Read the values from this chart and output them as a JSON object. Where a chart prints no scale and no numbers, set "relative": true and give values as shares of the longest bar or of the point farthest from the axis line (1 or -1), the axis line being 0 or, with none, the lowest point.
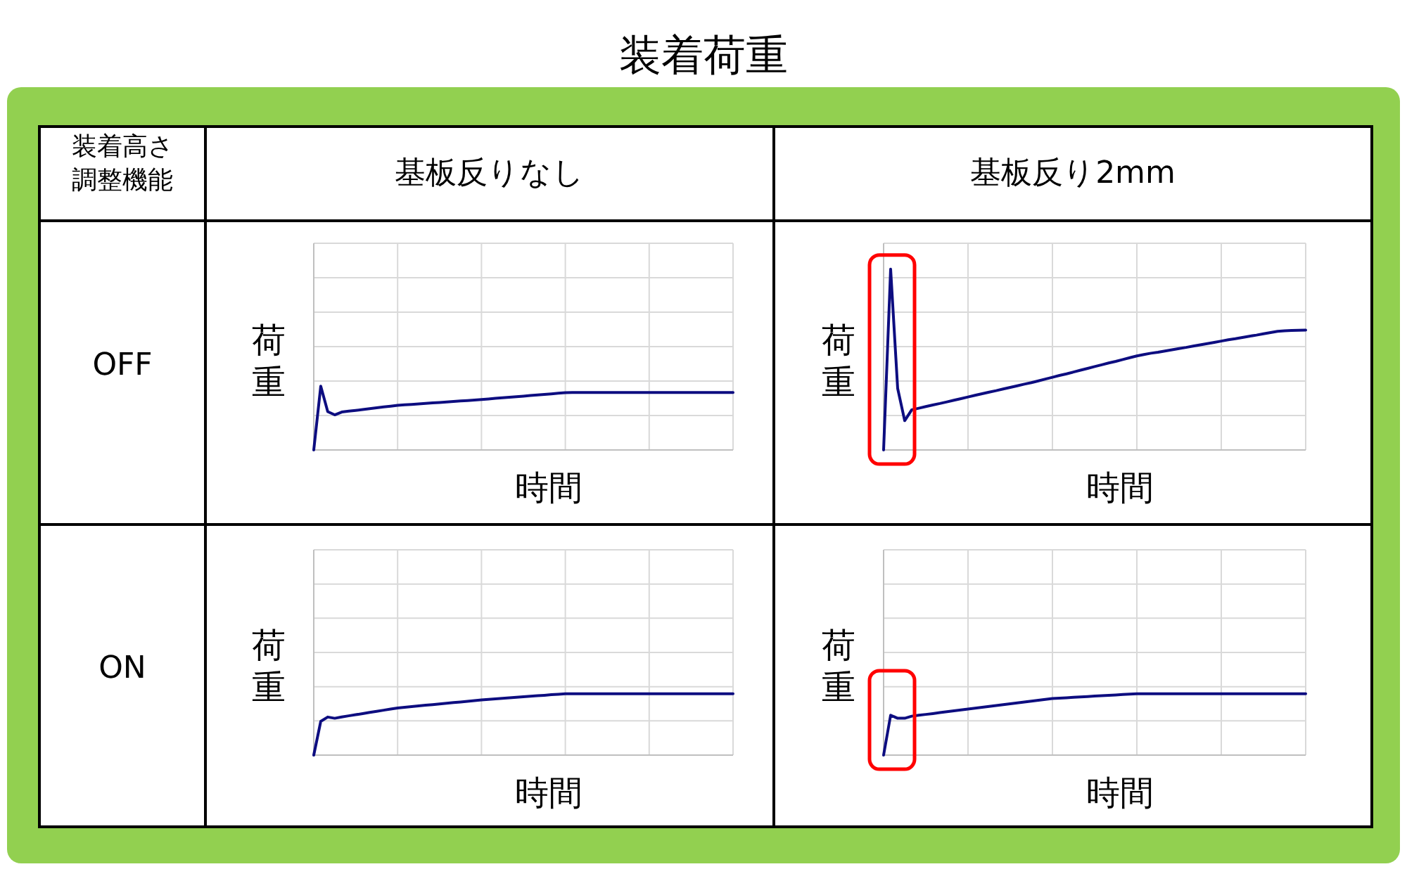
{
  "chart_data": [
    {
      "type": "other",
      "title": "装着荷重",
      "annotations": [
        "装着高さ調整機能",
        "基板反りなし",
        "基板反り2mm",
        "OFF",
        "ON"
      ]
    },
    {
      "type": "line",
      "relative": true,
      "xlabel": "時間",
      "ylabel": "荷重",
      "grid": true,
      "categories": [
        null,
        null,
        null,
        null,
        null,
        null,
        null,
        null,
        null,
        null,
        null,
        null,
        null,
        null,
        null,
        null,
        null,
        null,
        null,
        null,
        null,
        null,
        null,
        null,
        null,
        null,
        null,
        null,
        null,
        null,
        null,
        null,
        null,
        null,
        null,
        null,
        null,
        null,
        null,
        null,
        null,
        null,
        null,
        null,
        null,
        null,
        null,
        null,
        null,
        null,
        null,
        null,
        null,
        null,
        null,
        null,
        null,
        null,
        null,
        null,
        null
      ],
      "values": [
        0,
        1,
        0.6,
        0.55,
        0.594,
        0.607,
        0.62,
        0.633,
        0.646,
        0.66,
        0.673,
        0.686,
        0.699,
        0.707,
        0.714,
        0.722,
        0.729,
        0.737,
        0.744,
        0.752,
        0.76,
        0.767,
        0.774,
        0.782,
        0.789,
        0.798,
        0.808,
        0.817,
        0.826,
        0.835,
        0.843,
        0.852,
        0.861,
        0.87,
        0.879,
        0.888,
        0.898,
        0.9,
        0.9,
        0.9,
        0.9,
        0.9,
        0.9,
        0.9,
        0.9,
        0.9,
        0.9,
        0.9,
        0.9,
        0.9,
        0.9,
        0.9,
        0.9,
        0.9,
        0.9,
        0.9,
        0.9,
        0.9,
        0.9,
        0.9,
        0.9
      ],
      "color": "#0d0d80"
    },
    {
      "type": "line",
      "relative": true,
      "xlabel": "時間",
      "ylabel": "荷重",
      "grid": true,
      "categories": [
        null,
        null,
        null,
        null,
        null,
        null,
        null,
        null,
        null,
        null,
        null,
        null,
        null,
        null,
        null,
        null,
        null,
        null,
        null,
        null,
        null,
        null,
        null,
        null,
        null,
        null,
        null,
        null,
        null,
        null,
        null,
        null,
        null,
        null,
        null,
        null,
        null,
        null,
        null,
        null,
        null,
        null,
        null,
        null,
        null,
        null,
        null,
        null,
        null,
        null,
        null,
        null,
        null,
        null,
        null,
        null,
        null,
        null,
        null,
        null,
        null
      ],
      "values": [
        0,
        1,
        0.34,
        0.162,
        0.222,
        0.231,
        0.24,
        0.249,
        0.257,
        0.266,
        0.275,
        0.284,
        0.293,
        0.302,
        0.311,
        0.32,
        0.328,
        0.337,
        0.346,
        0.355,
        0.364,
        0.372,
        0.382,
        0.392,
        0.402,
        0.412,
        0.421,
        0.431,
        0.441,
        0.451,
        0.461,
        0.471,
        0.481,
        0.49,
        0.5,
        0.51,
        0.52,
        0.528,
        0.535,
        0.54,
        0.547,
        0.554,
        0.561,
        0.567,
        0.574,
        0.581,
        0.588,
        0.595,
        0.602,
        0.609,
        0.615,
        0.622,
        0.629,
        0.635,
        0.642,
        0.649,
        0.656,
        0.659,
        0.661,
        0.662,
        0.663
      ],
      "color": "#0d0d80"
    },
    {
      "type": "line",
      "relative": true,
      "xlabel": "時間",
      "ylabel": "荷重",
      "grid": true,
      "categories": [
        null,
        null,
        null,
        null,
        null,
        null,
        null,
        null,
        null,
        null,
        null,
        null,
        null,
        null,
        null,
        null,
        null,
        null,
        null,
        null,
        null,
        null,
        null,
        null,
        null,
        null,
        null,
        null,
        null,
        null,
        null,
        null,
        null,
        null,
        null,
        null,
        null,
        null,
        null,
        null,
        null,
        null,
        null,
        null,
        null,
        null,
        null,
        null,
        null,
        null,
        null,
        null,
        null,
        null,
        null,
        null,
        null,
        null,
        null,
        null,
        null
      ],
      "values": [
        0,
        0.55,
        0.62,
        0.6,
        0.622,
        0.64,
        0.658,
        0.676,
        0.695,
        0.713,
        0.732,
        0.75,
        0.768,
        0.78,
        0.79,
        0.801,
        0.812,
        0.823,
        0.834,
        0.845,
        0.856,
        0.866,
        0.877,
        0.888,
        0.899,
        0.908,
        0.916,
        0.925,
        0.933,
        0.942,
        0.95,
        0.958,
        0.967,
        0.975,
        0.984,
        0.992,
        1,
        1,
        1,
        1,
        1,
        1,
        1,
        1,
        1,
        1,
        1,
        1,
        1,
        1,
        1,
        1,
        1,
        1,
        1,
        1,
        1,
        1,
        1,
        1,
        1
      ],
      "color": "#0d0d80"
    },
    {
      "type": "line",
      "relative": true,
      "xlabel": "時間",
      "ylabel": "荷重",
      "grid": true,
      "categories": [
        null,
        null,
        null,
        null,
        null,
        null,
        null,
        null,
        null,
        null,
        null,
        null,
        null,
        null,
        null,
        null,
        null,
        null,
        null,
        null,
        null,
        null,
        null,
        null,
        null,
        null,
        null,
        null,
        null,
        null,
        null,
        null,
        null,
        null,
        null,
        null,
        null,
        null,
        null,
        null,
        null,
        null,
        null,
        null,
        null,
        null,
        null,
        null,
        null,
        null,
        null,
        null,
        null,
        null,
        null,
        null,
        null,
        null,
        null,
        null,
        null
      ],
      "values": [
        0,
        0.65,
        0.6,
        0.6,
        0.634,
        0.649,
        0.663,
        0.677,
        0.692,
        0.706,
        0.721,
        0.735,
        0.75,
        0.764,
        0.778,
        0.793,
        0.807,
        0.822,
        0.836,
        0.85,
        0.865,
        0.879,
        0.894,
        0.908,
        0.921,
        0.928,
        0.934,
        0.941,
        0.948,
        0.954,
        0.961,
        0.967,
        0.974,
        0.98,
        0.987,
        0.994,
        1,
        1,
        1,
        1,
        1,
        1,
        1,
        1,
        1,
        1,
        1,
        1,
        1,
        1,
        1,
        1,
        1,
        1,
        1,
        1,
        1,
        1,
        1,
        1,
        1
      ],
      "color": "#0d0d80"
    }
  ]
}
